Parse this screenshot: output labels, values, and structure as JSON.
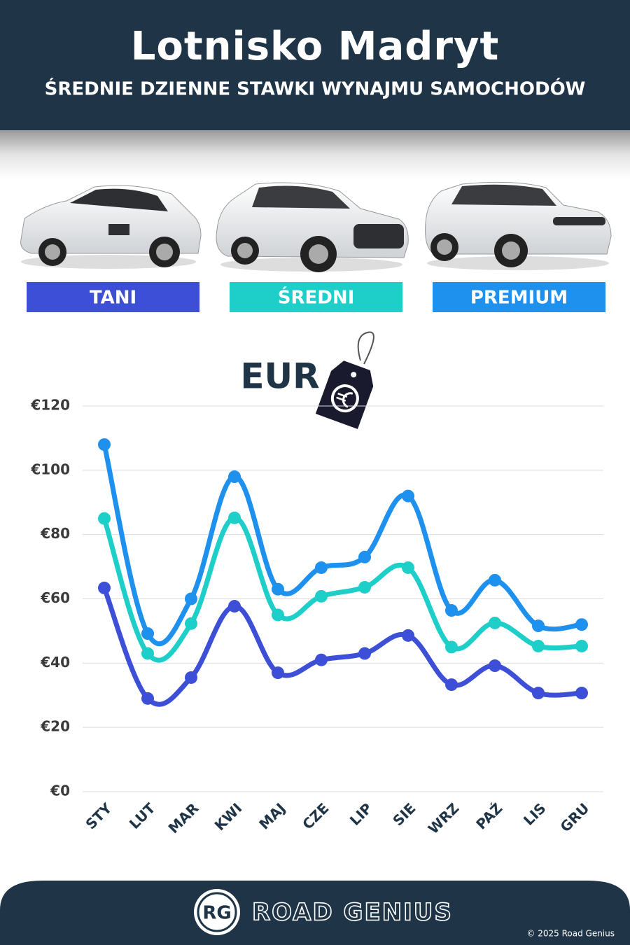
{
  "chart_data": {
    "type": "line",
    "title": "Lotnisko Madryt",
    "subtitle": "ŚREDNIE DZIENNE STAWKI WYNAJMU SAMOCHODÓW",
    "y_label": "EUR",
    "categories": [
      "STY",
      "LUT",
      "MAR",
      "KWI",
      "MAJ",
      "CZE",
      "LIP",
      "SIE",
      "WRZ",
      "PAŹ",
      "LIS",
      "GRU"
    ],
    "series": [
      {
        "name": "TANI",
        "color": "#3d4fd6",
        "values": [
          63.4,
          29,
          35.5,
          57.7,
          37,
          41,
          43,
          48.6,
          33.3,
          39.2,
          30.7,
          30.7
        ]
      },
      {
        "name": "ŚREDNI",
        "color": "#1ecfc9",
        "values": [
          85,
          43,
          52.3,
          85.2,
          55,
          60.8,
          63.6,
          69.7,
          45,
          52.5,
          45.3,
          45.3
        ]
      },
      {
        "name": "PREMIUM",
        "color": "#1e90ee",
        "values": [
          108,
          49.2,
          60,
          98,
          63,
          69.7,
          73,
          92,
          56.4,
          65.8,
          51.6,
          52
        ]
      }
    ],
    "ylim": [
      0,
      120
    ],
    "yticks": [
      {
        "value": 0,
        "label": "€0"
      },
      {
        "value": 20,
        "label": "€20"
      },
      {
        "value": 40,
        "label": "€40"
      },
      {
        "value": 60,
        "label": "€60"
      },
      {
        "value": 80,
        "label": "€80"
      },
      {
        "value": 100,
        "label": "€100"
      },
      {
        "value": 120,
        "label": "€120"
      }
    ],
    "grid": true
  },
  "footer": {
    "logo": "RG",
    "brand": "ROAD GENIUS",
    "copyright": "© 2025 Road Genius"
  }
}
